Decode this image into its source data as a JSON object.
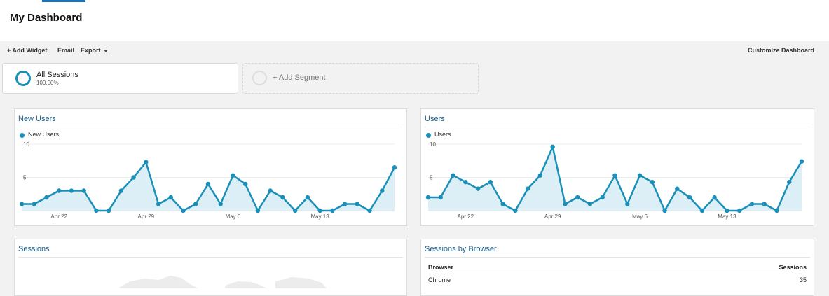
{
  "page": {
    "title": "My Dashboard"
  },
  "toolbar": {
    "add_widget": "+ Add Widget",
    "email": "Email",
    "export": "Export",
    "customize": "Customize Dashboard"
  },
  "segments": {
    "active": {
      "name": "All Sessions",
      "percent": "100.00%"
    },
    "add_label": "+ Add Segment"
  },
  "colors": {
    "accent": "#1a8fb8",
    "fill": "#dceef6",
    "title": "#1a5e8a"
  },
  "widgets": {
    "new_users": {
      "title": "New Users"
    },
    "users": {
      "title": "Users"
    },
    "sessions": {
      "title": "Sessions"
    },
    "browser": {
      "title": "Sessions by Browser",
      "columns": [
        "Browser",
        "Sessions"
      ],
      "rows": [
        {
          "browser": "Chrome",
          "sessions": "35"
        }
      ]
    }
  },
  "chart_data": [
    {
      "type": "line",
      "title": "New Users",
      "series": [
        {
          "name": "New Users",
          "values": [
            1,
            1,
            2,
            3,
            3,
            3,
            0,
            0,
            3,
            5,
            7.3,
            1,
            2,
            0,
            1,
            4,
            1,
            5.3,
            4,
            0,
            3,
            2,
            0,
            2,
            0,
            0,
            1,
            1,
            0,
            3,
            6.5
          ]
        }
      ],
      "ylim": [
        0,
        10
      ],
      "yticks": [
        "5",
        "10"
      ],
      "xticks": [
        {
          "label": "Apr 22",
          "index": 3
        },
        {
          "label": "Apr 29",
          "index": 10
        },
        {
          "label": "May 6",
          "index": 17
        },
        {
          "label": "May 13",
          "index": 24
        }
      ],
      "grid": true
    },
    {
      "type": "line",
      "title": "Users",
      "series": [
        {
          "name": "Users",
          "values": [
            2,
            2,
            5.3,
            4.3,
            3.3,
            4.3,
            1,
            0,
            3.3,
            5.3,
            9.6,
            1,
            2,
            1,
            2,
            5.3,
            1,
            5.3,
            4.3,
            0,
            3.3,
            2,
            0,
            2,
            0,
            0,
            1,
            1,
            0,
            4.3,
            7.4
          ]
        }
      ],
      "ylim": [
        0,
        10
      ],
      "yticks": [
        "5",
        "10"
      ],
      "xticks": [
        {
          "label": "Apr 22",
          "index": 3
        },
        {
          "label": "Apr 29",
          "index": 10
        },
        {
          "label": "May 6",
          "index": 17
        },
        {
          "label": "May 13",
          "index": 24
        }
      ],
      "grid": true
    }
  ]
}
